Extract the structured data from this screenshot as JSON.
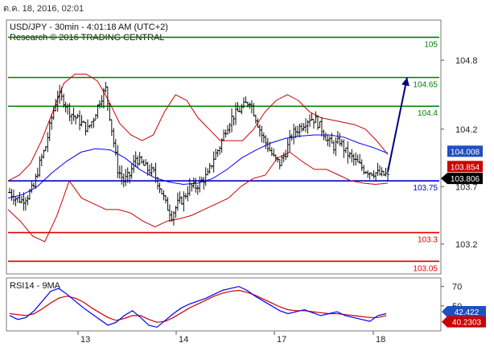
{
  "header": {
    "date_label": "ต.ค. 18, 2016, 02:01",
    "symbol_line": "USD/JPY - 30min - 4:01:18 AM (UTC+2)",
    "research_line": "Research © 2016 TRADING CENTRAL"
  },
  "rsi_panel": {
    "title": "RSI14 - 9MA"
  },
  "colors": {
    "resistance": "#008000",
    "support": "#e00000",
    "pivot": "#0000d0",
    "bollinger": "#cc0000",
    "moving_average": "#0000ff",
    "arrow": "#000080",
    "price_box": "#000000",
    "upper_box": "#1f4fbf",
    "mid_box": "#cc0000"
  },
  "chart_data": [
    {
      "type": "candlestick",
      "title": "USD/JPY - 30min",
      "x_tick_labels": [
        "13",
        "14",
        "17",
        "18"
      ],
      "y_tick_labels": [
        "104.8",
        "104.2",
        "103.7",
        "103.2"
      ],
      "ylim": [
        102.94,
        105.15
      ],
      "levels": [
        {
          "value": 105.0,
          "label": "105",
          "role": "resistance"
        },
        {
          "value": 104.65,
          "label": "104.65",
          "role": "resistance"
        },
        {
          "value": 104.4,
          "label": "104.4",
          "role": "resistance"
        },
        {
          "value": 103.75,
          "label": "103.75",
          "role": "pivot"
        },
        {
          "value": 103.3,
          "label": "103.3",
          "role": "support"
        },
        {
          "value": 103.05,
          "label": "103.05",
          "role": "support"
        }
      ],
      "price_tags": [
        {
          "value": 104.008,
          "label": "104.008",
          "style": "upper_box"
        },
        {
          "value": 103.854,
          "label": "103.854",
          "style": "mid_box"
        },
        {
          "value": 103.806,
          "label": "103.806",
          "style": "price_box"
        }
      ],
      "close_series": [
        103.65,
        103.6,
        103.58,
        103.62,
        103.7,
        103.9,
        104.05,
        104.3,
        104.5,
        104.45,
        104.35,
        104.3,
        104.25,
        104.2,
        104.3,
        104.45,
        104.55,
        104.2,
        103.85,
        103.75,
        103.8,
        103.95,
        103.9,
        103.85,
        103.82,
        103.7,
        103.55,
        103.45,
        103.55,
        103.6,
        103.7,
        103.7,
        103.75,
        103.8,
        103.95,
        104.05,
        104.2,
        104.3,
        104.35,
        104.4,
        104.45,
        104.3,
        104.15,
        104.05,
        103.95,
        103.9,
        104.0,
        104.15,
        104.2,
        104.25,
        104.3,
        104.28,
        104.2,
        104.1,
        104.05,
        104.1,
        104.0,
        103.95,
        103.9,
        103.85,
        103.83,
        103.82,
        103.8,
        103.81
      ],
      "bollinger_upper": [
        103.75,
        103.8,
        103.9,
        104.1,
        104.35,
        104.6,
        104.68,
        104.68,
        104.62,
        104.45,
        104.25,
        104.15,
        104.1,
        104.15,
        104.35,
        104.5,
        104.45,
        104.3,
        104.2,
        104.1,
        104.1,
        104.1,
        104.2,
        104.35,
        104.45,
        104.5,
        104.45,
        104.35,
        104.3,
        104.28,
        104.26,
        104.24,
        104.2,
        104.1,
        103.98
      ],
      "bollinger_lower": [
        103.5,
        103.4,
        103.27,
        103.22,
        103.45,
        103.75,
        103.6,
        103.55,
        103.5,
        103.5,
        103.47,
        103.4,
        103.35,
        103.4,
        103.42,
        103.45,
        103.5,
        103.55,
        103.6,
        103.7,
        103.77,
        103.8,
        103.95,
        104.0,
        103.92,
        103.85,
        103.85,
        103.8,
        103.75,
        103.73,
        103.72,
        103.73
      ],
      "moving_average": [
        103.6,
        103.63,
        103.7,
        103.82,
        103.92,
        104.0,
        104.03,
        104.02,
        103.95,
        103.85,
        103.78,
        103.74,
        103.72,
        103.73,
        103.77,
        103.85,
        103.95,
        104.02,
        104.08,
        104.12,
        104.14,
        104.15,
        104.15,
        104.13,
        104.08,
        104.04,
        103.99
      ],
      "projection": [
        {
          "x_step": 0,
          "value": 103.83
        },
        {
          "x_step": 1,
          "value": 104.65
        }
      ]
    },
    {
      "type": "line",
      "title": "RSI14 - 9MA",
      "y_tick_labels": [
        "70",
        "50"
      ],
      "ylim": [
        25,
        78
      ],
      "series": [
        {
          "name": "RSI14",
          "values": [
            40,
            36,
            38,
            45,
            55,
            65,
            68,
            62,
            55,
            48,
            42,
            36,
            30,
            33,
            40,
            45,
            38,
            30,
            28,
            35,
            42,
            48,
            52,
            55,
            58,
            62,
            66,
            68,
            70,
            66,
            60,
            55,
            50,
            45,
            42,
            44,
            46,
            43,
            40,
            42,
            44,
            40,
            38,
            36,
            34,
            40,
            42
          ]
        },
        {
          "name": "9MA",
          "values": [
            42,
            41,
            40,
            42,
            47,
            53,
            58,
            60,
            58,
            54,
            48,
            43,
            38,
            35,
            37,
            40,
            40,
            36,
            33,
            34,
            38,
            43,
            48,
            52,
            56,
            60,
            63,
            65,
            66,
            64,
            61,
            57,
            53,
            49,
            46,
            45,
            45,
            44,
            43,
            42,
            42,
            41,
            40,
            39,
            38,
            38,
            40
          ]
        }
      ],
      "value_tags": [
        {
          "value": 42.422,
          "label": "42.422",
          "style": "upper_box"
        },
        {
          "value": 40.2303,
          "label": "40.2303",
          "style": "mid_box"
        }
      ]
    }
  ]
}
